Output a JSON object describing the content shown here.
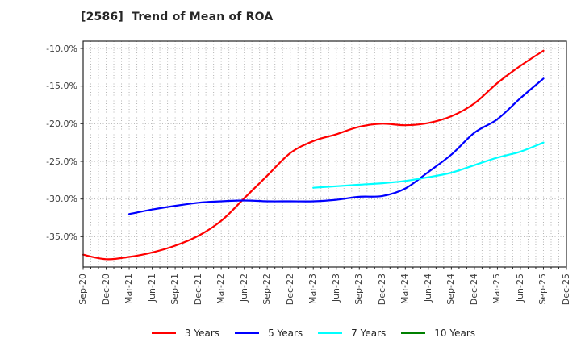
{
  "chart_data": {
    "type": "line",
    "title": "[2586]  Trend of Mean of ROA",
    "xlabel": "",
    "ylabel": "",
    "x_labels": [
      "Sep-20",
      "Dec-20",
      "Mar-21",
      "Jun-21",
      "Sep-21",
      "Dec-21",
      "Mar-22",
      "Jun-22",
      "Sep-22",
      "Dec-22",
      "Mar-23",
      "Jun-23",
      "Sep-23",
      "Dec-23",
      "Mar-24",
      "Jun-24",
      "Sep-24",
      "Dec-24",
      "Mar-25",
      "Jun-25",
      "Sep-25",
      "Dec-25"
    ],
    "y_ticks": [
      -10,
      -15,
      -20,
      -25,
      -30,
      -35
    ],
    "y_tick_labels": [
      "-10.0%",
      "-15.0%",
      "-20.0%",
      "-25.0%",
      "-30.0%",
      "-35.0%"
    ],
    "ylim": [
      -39.0,
      -9.0
    ],
    "grid": "dotted gray; horizontal every 5%, vertical monthly",
    "legend_position": "bottom-center, no frame",
    "series": [
      {
        "name": "3 Years",
        "color": "#ff0000",
        "start_index": 0,
        "values": [
          -37.4,
          -38.0,
          -37.7,
          -37.1,
          -36.2,
          -34.9,
          -32.9,
          -29.9,
          -26.9,
          -23.9,
          -22.3,
          -21.4,
          -20.4,
          -20.0,
          -20.2,
          -19.9,
          -19.0,
          -17.3,
          -14.6,
          -12.3,
          -10.3
        ]
      },
      {
        "name": "5 Years",
        "color": "#0000ff",
        "start_index": 2,
        "values": [
          -32.0,
          -31.4,
          -30.9,
          -30.5,
          -30.3,
          -30.2,
          -30.3,
          -30.3,
          -30.3,
          -30.1,
          -29.7,
          -29.6,
          -28.6,
          -26.4,
          -24.1,
          -21.2,
          -19.4,
          -16.6,
          -14.0
        ]
      },
      {
        "name": "7 Years",
        "color": "#00ffff",
        "start_index": 10,
        "values": [
          -28.5,
          -28.3,
          -28.1,
          -27.9,
          -27.6,
          -27.1,
          -26.5,
          -25.5,
          -24.5,
          -23.7,
          -22.5
        ]
      },
      {
        "name": "10 Years",
        "color": "#008000",
        "start_index": 0,
        "values": []
      }
    ],
    "style": {
      "grid_color": "#b3b3b3",
      "axis_color": "#262626",
      "tick_label_color": "#3c3c3c",
      "title_color": "#262626",
      "background": "#ffffff",
      "line_width": 2.2
    }
  }
}
